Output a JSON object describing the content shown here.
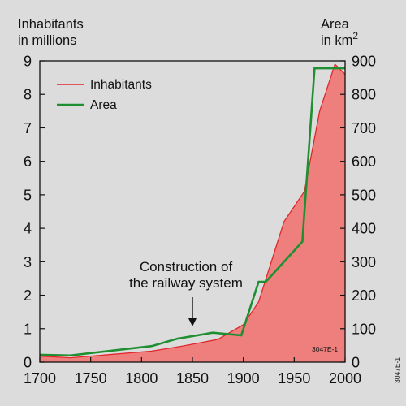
{
  "chart_data": {
    "type": "line",
    "x": [
      1700,
      1730,
      1810,
      1840,
      1875,
      1900,
      1915,
      1940,
      1960,
      1975,
      1990,
      2000
    ],
    "series": [
      {
        "name": "Inhabitants",
        "x": [
          1700,
          1730,
          1810,
          1840,
          1875,
          1900,
          1915,
          1940,
          1960,
          1975,
          1990,
          2000
        ],
        "values": [
          0.18,
          0.13,
          0.33,
          0.48,
          0.68,
          1.12,
          1.8,
          4.2,
          5.1,
          7.5,
          8.9,
          8.6
        ],
        "color": "#e0282c",
        "fill": "#ef7f7c",
        "unit_axis": "left"
      },
      {
        "name": "Area",
        "x": [
          1700,
          1730,
          1810,
          1835,
          1870,
          1898,
          1915,
          1922,
          1940,
          1958,
          1970,
          1990,
          2000
        ],
        "values": [
          22,
          20,
          48,
          70,
          88,
          80,
          240,
          240,
          300,
          360,
          878,
          878,
          878
        ],
        "color": "#1f8f32",
        "unit_axis": "right"
      }
    ],
    "left_axis": {
      "label_line1": "Inhabitants",
      "label_line2": "in millions",
      "ylim": [
        0,
        9
      ],
      "ticks": [
        "0",
        "1",
        "2",
        "3",
        "4",
        "5",
        "6",
        "7",
        "8",
        "9"
      ]
    },
    "right_axis": {
      "label_line1": "Area",
      "label_line2": "in km",
      "label_sup": "2",
      "ylim": [
        0,
        900
      ],
      "ticks": [
        "0",
        "100",
        "200",
        "300",
        "400",
        "500",
        "600",
        "700",
        "800",
        "900"
      ]
    },
    "x_axis": {
      "xlim": [
        1700,
        2000
      ],
      "ticks": [
        "1700",
        "1750",
        "1800",
        "1850",
        "1900",
        "1950",
        "2000"
      ]
    },
    "annotation": {
      "line1": "Construction of",
      "line2": "the railway system",
      "x": 1850
    },
    "legend_position": "top-left",
    "grid": false
  },
  "figure_codes": {
    "inner": "3047E-1",
    "side": "3047E-1"
  },
  "colors": {
    "background": "#dcdcdc",
    "inhabitants_fill": "#ef7f7c",
    "inhabitants_line": "#e0282c",
    "area_line": "#1f8f32"
  }
}
